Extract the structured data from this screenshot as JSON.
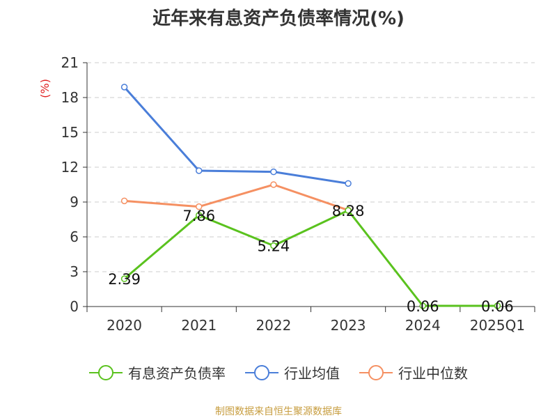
{
  "title": "近年来有息资产负债率情况(%)",
  "footer": "制图数据来自恒生聚源数据库",
  "chart_data": {
    "type": "line",
    "ylabel": "(%)",
    "xlabel": "",
    "ylim": [
      0,
      21
    ],
    "yticks": [
      0,
      3,
      6,
      9,
      12,
      15,
      18,
      21
    ],
    "grid": true,
    "legend_position": "bottom",
    "categories": [
      "2020",
      "2021",
      "2022",
      "2023",
      "2024",
      "2025Q1"
    ],
    "series": [
      {
        "name": "有息资产负债率",
        "color": "#5ac21e",
        "values": [
          2.39,
          7.86,
          5.24,
          8.28,
          0.06,
          0.06
        ],
        "labels": [
          "2.39",
          "7.86",
          "5.24",
          "8.28",
          "0.06",
          "0.06"
        ]
      },
      {
        "name": "行业均值",
        "color": "#4a7ed9",
        "values": [
          18.9,
          11.7,
          11.6,
          10.6,
          null,
          null
        ]
      },
      {
        "name": "行业中位数",
        "color": "#f59062",
        "values": [
          9.1,
          8.6,
          10.5,
          8.3,
          null,
          null
        ]
      }
    ]
  }
}
